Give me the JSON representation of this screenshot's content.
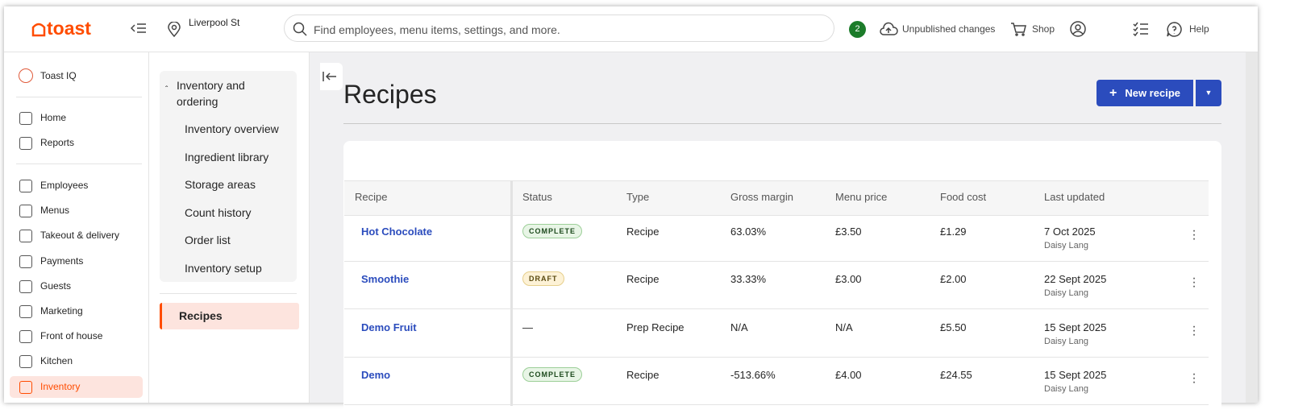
{
  "header": {
    "logo": "toast",
    "location": "Liverpool St",
    "search_placeholder": "Find employees, menu items, settings, and more.",
    "badge": "2",
    "unpublished": "Unpublished changes",
    "shop": "Shop",
    "help": "Help"
  },
  "sidebar": {
    "top": "Toast IQ",
    "group1": [
      "Home",
      "Reports"
    ],
    "group2": [
      "Employees",
      "Menus",
      "Takeout & delivery",
      "Payments",
      "Guests",
      "Marketing",
      "Front of house",
      "Kitchen",
      "Inventory"
    ],
    "active": "Inventory"
  },
  "subnav": {
    "group": "Inventory and ordering",
    "items": [
      "Inventory overview",
      "Ingredient library",
      "Storage areas",
      "Count history",
      "Order list",
      "Inventory setup"
    ],
    "active": "Recipes"
  },
  "page": {
    "title": "Recipes",
    "new_button": "New recipe"
  },
  "table": {
    "columns": [
      "Recipe",
      "Status",
      "Type",
      "Gross margin",
      "Menu price",
      "Food cost",
      "Last updated"
    ],
    "rows": [
      {
        "name": "Hot Chocolate",
        "status": "COMPLETE",
        "type": "Recipe",
        "gross_margin": "63.03%",
        "menu_price": "£3.50",
        "food_cost": "£1.29",
        "updated": "7 Oct 2025",
        "by": "Daisy Lang"
      },
      {
        "name": "Smoothie",
        "status": "DRAFT",
        "type": "Recipe",
        "gross_margin": "33.33%",
        "menu_price": "£3.00",
        "food_cost": "£2.00",
        "updated": "22 Sept 2025",
        "by": "Daisy Lang"
      },
      {
        "name": "Demo Fruit",
        "status": "—",
        "type": "Prep Recipe",
        "gross_margin": "N/A",
        "menu_price": "N/A",
        "food_cost": "£5.50",
        "updated": "15 Sept 2025",
        "by": "Daisy Lang"
      },
      {
        "name": "Demo",
        "status": "COMPLETE",
        "type": "Recipe",
        "gross_margin": "-513.66%",
        "menu_price": "£4.00",
        "food_cost": "£24.55",
        "updated": "15 Sept 2025",
        "by": "Daisy Lang"
      }
    ]
  }
}
